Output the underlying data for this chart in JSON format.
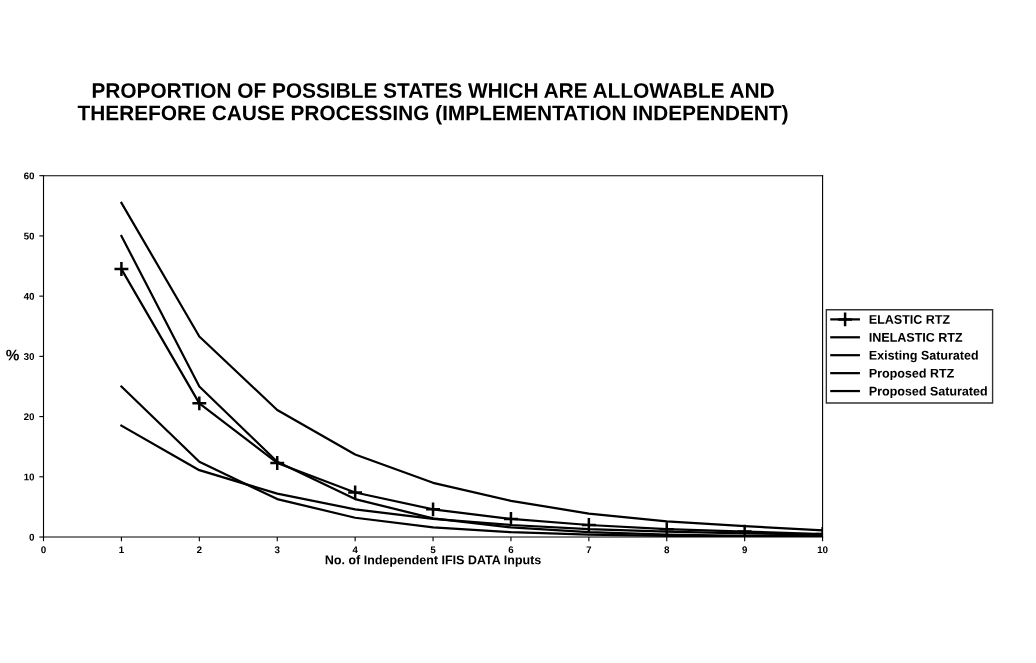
{
  "chart_data": {
    "type": "line",
    "title": "PROPORTION OF POSSIBLE STATES WHICH ARE ALLOWABLE AND\nTHEREFORE CAUSE PROCESSING (IMPLEMENTATION INDEPENDENT)",
    "xlabel": "No. of Independent IFIS DATA Inputs",
    "ylabel": "%",
    "x": [
      1,
      2,
      3,
      4,
      5,
      6,
      7,
      8,
      9,
      10
    ],
    "series": [
      {
        "name": "ELASTIC RTZ",
        "color": "#000000",
        "marker": "cross",
        "values": [
          44.5,
          22.2,
          12.3,
          7.4,
          4.6,
          3.0,
          2.0,
          1.3,
          0.9,
          0.5
        ]
      },
      {
        "name": "INELASTIC RTZ",
        "color": "#000000",
        "values": [
          50,
          25,
          12.5,
          6.3,
          3.1,
          1.6,
          0.8,
          0.4,
          0.2,
          0.1
        ]
      },
      {
        "name": "Existing Saturated",
        "color": "#000000",
        "values": [
          55.5,
          33.3,
          21.1,
          13.7,
          9.0,
          6.0,
          3.9,
          2.6,
          1.8,
          1.1
        ]
      },
      {
        "name": "Proposed RTZ",
        "color": "#000000",
        "values": [
          25,
          12.5,
          6.3,
          3.2,
          1.6,
          0.8,
          0.4,
          0.2,
          0.1,
          0.1
        ]
      },
      {
        "name": "Proposed Saturated",
        "color": "#000000",
        "values": [
          18.5,
          11.1,
          7.2,
          4.6,
          3.0,
          2.0,
          1.3,
          0.9,
          0.6,
          0.4
        ]
      }
    ],
    "xlim": [
      0,
      10
    ],
    "xticks": [
      0,
      1,
      2,
      3,
      4,
      5,
      6,
      7,
      8,
      9,
      10
    ],
    "ylim": [
      0,
      60
    ],
    "yticks": [
      0,
      10,
      20,
      30,
      40,
      50,
      60
    ],
    "grid": false,
    "legend": "right",
    "line_style": "solid"
  }
}
